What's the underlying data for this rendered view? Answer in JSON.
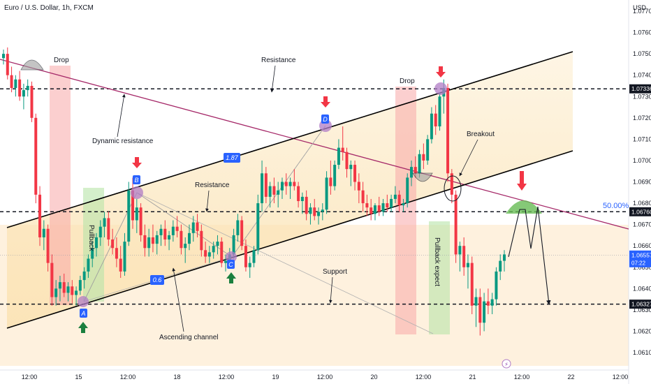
{
  "header": {
    "title": "Euro / U.S. Dollar, 1h, FXCM"
  },
  "chart_data": {
    "type": "candlestick",
    "title": "Euro / U.S. Dollar, 1h, FXCM",
    "currency": "USD",
    "ylim": [
      1.061,
      1.077
    ],
    "y_ticks": [
      "1.07700",
      "1.07600",
      "1.07500",
      "1.07400",
      "1.07300",
      "1.07200",
      "1.07100",
      "1.07000",
      "1.06900",
      "1.06800",
      "1.06700",
      "1.06600",
      "1.06500",
      "1.06400",
      "1.06300",
      "1.06200",
      "1.06100"
    ],
    "x_ticks": [
      "12:00",
      "15",
      "12:00",
      "18",
      "12:00",
      "19",
      "12:00",
      "20",
      "12:00",
      "21",
      "12:00",
      "22",
      "12:00"
    ],
    "price_tags": [
      {
        "label": "1.07336",
        "value": 1.07336,
        "style": "dark"
      },
      {
        "label": "1.06760",
        "value": 1.0676,
        "style": "dark"
      },
      {
        "label": "1.06557",
        "sub": "07:22",
        "value": 1.06557,
        "style": "blue"
      },
      {
        "label": "1.06327",
        "value": 1.06327,
        "style": "dark"
      }
    ],
    "levels": [
      1.07336,
      1.0676,
      1.06327
    ],
    "fib_label": "50.00%",
    "colors": {
      "up": "#089981",
      "down": "#f23645",
      "channel": "#000000",
      "dynamic": "#a52868",
      "zone": "#fbe3b4"
    },
    "annotations": {
      "drop_1": "Drop",
      "drop_2": "Drop",
      "resistance_top": "Resistance",
      "resistance_mid": "Resistance",
      "dynamic_resistance": "Dynamic resistance",
      "support": "Support",
      "ascending_channel": "Ascending channel",
      "breakout": "Breakout",
      "pullback": "Pullback",
      "pullback_expect": "Pullback expect"
    },
    "points": {
      "A": "A",
      "B": "B",
      "C": "C",
      "D": "D"
    },
    "ratios": {
      "r1": "1.87",
      "r2": "0.6"
    },
    "candles": [
      [
        1.0748,
        1.0752,
        1.0745,
        1.075
      ],
      [
        1.075,
        1.0753,
        1.0738,
        1.074
      ],
      [
        1.074,
        1.0744,
        1.0732,
        1.0734
      ],
      [
        1.0734,
        1.074,
        1.073,
        1.0738
      ],
      [
        1.0738,
        1.0742,
        1.0728,
        1.073
      ],
      [
        1.073,
        1.0736,
        1.0724,
        1.0733
      ],
      [
        1.0733,
        1.0738,
        1.073,
        1.0735
      ],
      [
        1.0735,
        1.0737,
        1.0718,
        1.072
      ],
      [
        1.072,
        1.0722,
        1.068,
        1.0684
      ],
      [
        1.0684,
        1.0688,
        1.066,
        1.0664
      ],
      [
        1.0664,
        1.0672,
        1.0658,
        1.0668
      ],
      [
        1.0668,
        1.067,
        1.0648,
        1.0652
      ],
      [
        1.0652,
        1.0656,
        1.0632,
        1.0636
      ],
      [
        1.0636,
        1.0644,
        1.0632,
        1.064
      ],
      [
        1.064,
        1.0646,
        1.0634,
        1.0643
      ],
      [
        1.0643,
        1.0647,
        1.0636,
        1.0638
      ],
      [
        1.0638,
        1.0643,
        1.0634,
        1.0641
      ],
      [
        1.0641,
        1.0644,
        1.0633,
        1.0637
      ],
      [
        1.0637,
        1.0641,
        1.0632,
        1.0639
      ],
      [
        1.0639,
        1.0646,
        1.0637,
        1.0644
      ],
      [
        1.0644,
        1.065,
        1.064,
        1.0648
      ],
      [
        1.0648,
        1.0656,
        1.0645,
        1.0654
      ],
      [
        1.0654,
        1.0662,
        1.065,
        1.0659
      ],
      [
        1.0659,
        1.0666,
        1.0655,
        1.0664
      ],
      [
        1.0664,
        1.0672,
        1.066,
        1.0669
      ],
      [
        1.0669,
        1.0676,
        1.0664,
        1.0673
      ],
      [
        1.0673,
        1.0676,
        1.066,
        1.0663
      ],
      [
        1.0663,
        1.0668,
        1.0656,
        1.0659
      ],
      [
        1.0659,
        1.0664,
        1.065,
        1.0654
      ],
      [
        1.0654,
        1.066,
        1.0645,
        1.0648
      ],
      [
        1.0648,
        1.0666,
        1.0646,
        1.0662
      ],
      [
        1.0662,
        1.069,
        1.066,
        1.0686
      ],
      [
        1.0686,
        1.0692,
        1.0668,
        1.0672
      ],
      [
        1.0672,
        1.0682,
        1.0666,
        1.0678
      ],
      [
        1.0678,
        1.068,
        1.0662,
        1.0665
      ],
      [
        1.0665,
        1.067,
        1.0655,
        1.0659
      ],
      [
        1.0659,
        1.0668,
        1.0655,
        1.0664
      ],
      [
        1.0664,
        1.067,
        1.0657,
        1.0661
      ],
      [
        1.0661,
        1.0667,
        1.0656,
        1.0665
      ],
      [
        1.0665,
        1.067,
        1.066,
        1.0668
      ],
      [
        1.0668,
        1.0672,
        1.066,
        1.0663
      ],
      [
        1.0663,
        1.0667,
        1.0658,
        1.0665
      ],
      [
        1.0665,
        1.0672,
        1.0662,
        1.0669
      ],
      [
        1.0669,
        1.0674,
        1.0664,
        1.0667
      ],
      [
        1.0667,
        1.067,
        1.0656,
        1.0659
      ],
      [
        1.0659,
        1.0664,
        1.0652,
        1.0661
      ],
      [
        1.0661,
        1.067,
        1.0658,
        1.0666
      ],
      [
        1.0666,
        1.0674,
        1.0662,
        1.0671
      ],
      [
        1.0671,
        1.0675,
        1.0664,
        1.0667
      ],
      [
        1.0667,
        1.067,
        1.0655,
        1.0658
      ],
      [
        1.0658,
        1.0662,
        1.0652,
        1.0655
      ],
      [
        1.0655,
        1.066,
        1.0652,
        1.0657
      ],
      [
        1.0657,
        1.0662,
        1.0654,
        1.066
      ],
      [
        1.066,
        1.0665,
        1.0656,
        1.0662
      ],
      [
        1.0662,
        1.0664,
        1.065,
        1.0652
      ],
      [
        1.0652,
        1.0656,
        1.0648,
        1.0653
      ],
      [
        1.0653,
        1.0659,
        1.065,
        1.0656
      ],
      [
        1.0656,
        1.0668,
        1.0654,
        1.0665
      ],
      [
        1.0665,
        1.0675,
        1.0662,
        1.0672
      ],
      [
        1.0672,
        1.0674,
        1.0658,
        1.066
      ],
      [
        1.066,
        1.0663,
        1.0648,
        1.065
      ],
      [
        1.065,
        1.0655,
        1.0645,
        1.0652
      ],
      [
        1.0652,
        1.066,
        1.065,
        1.0658
      ],
      [
        1.0658,
        1.0684,
        1.0656,
        1.068
      ],
      [
        1.068,
        1.07,
        1.0676,
        1.0694
      ],
      [
        1.0694,
        1.0697,
        1.068,
        1.0683
      ],
      [
        1.0683,
        1.069,
        1.0678,
        1.0688
      ],
      [
        1.0688,
        1.0692,
        1.068,
        1.0684
      ],
      [
        1.0684,
        1.069,
        1.0678,
        1.0686
      ],
      [
        1.0686,
        1.0692,
        1.0682,
        1.069
      ],
      [
        1.069,
        1.0694,
        1.0684,
        1.0688
      ],
      [
        1.0688,
        1.0692,
        1.0682,
        1.069
      ],
      [
        1.069,
        1.0696,
        1.0686,
        1.0688
      ],
      [
        1.0688,
        1.069,
        1.0678,
        1.0681
      ],
      [
        1.0681,
        1.0685,
        1.0675,
        1.0683
      ],
      [
        1.0683,
        1.0686,
        1.0672,
        1.0675
      ],
      [
        1.0675,
        1.068,
        1.067,
        1.0678
      ],
      [
        1.0678,
        1.0682,
        1.0672,
        1.0674
      ],
      [
        1.0674,
        1.0678,
        1.067,
        1.0676
      ],
      [
        1.0676,
        1.068,
        1.0672,
        1.0677
      ],
      [
        1.0677,
        1.0695,
        1.0675,
        1.0692
      ],
      [
        1.0692,
        1.07,
        1.0684,
        1.0688
      ],
      [
        1.0688,
        1.07,
        1.0686,
        1.0698
      ],
      [
        1.0698,
        1.071,
        1.0696,
        1.0706
      ],
      [
        1.0706,
        1.0716,
        1.07,
        1.0704
      ],
      [
        1.0704,
        1.0706,
        1.0692,
        1.0696
      ],
      [
        1.0696,
        1.07,
        1.0688,
        1.0698
      ],
      [
        1.0698,
        1.07,
        1.0686,
        1.069
      ],
      [
        1.069,
        1.0694,
        1.068,
        1.0686
      ],
      [
        1.0686,
        1.069,
        1.0676,
        1.068
      ],
      [
        1.068,
        1.0684,
        1.0674,
        1.0678
      ],
      [
        1.0678,
        1.0682,
        1.0672,
        1.0675
      ],
      [
        1.0675,
        1.068,
        1.0672,
        1.0679
      ],
      [
        1.0679,
        1.0683,
        1.0674,
        1.0676
      ],
      [
        1.0676,
        1.0682,
        1.0674,
        1.068
      ],
      [
        1.068,
        1.0684,
        1.0676,
        1.0678
      ],
      [
        1.0678,
        1.0684,
        1.0676,
        1.0682
      ],
      [
        1.0682,
        1.0688,
        1.068,
        1.0684
      ],
      [
        1.0684,
        1.0686,
        1.0676,
        1.0679
      ],
      [
        1.0679,
        1.0682,
        1.0676,
        1.068
      ],
      [
        1.068,
        1.0694,
        1.0678,
        1.0692
      ],
      [
        1.0692,
        1.07,
        1.0688,
        1.0697
      ],
      [
        1.0697,
        1.0702,
        1.0692,
        1.0694
      ],
      [
        1.0694,
        1.0705,
        1.0692,
        1.0703
      ],
      [
        1.0703,
        1.0708,
        1.0696,
        1.07
      ],
      [
        1.07,
        1.0712,
        1.0698,
        1.071
      ],
      [
        1.071,
        1.0725,
        1.0708,
        1.0722
      ],
      [
        1.0722,
        1.0726,
        1.0712,
        1.0716
      ],
      [
        1.0716,
        1.0732,
        1.0714,
        1.073
      ],
      [
        1.073,
        1.0738,
        1.0722,
        1.0734
      ],
      [
        1.0734,
        1.0736,
        1.069,
        1.0694
      ],
      [
        1.0694,
        1.0696,
        1.068,
        1.0684
      ],
      [
        1.0684,
        1.0686,
        1.0652,
        1.0656
      ],
      [
        1.0656,
        1.0662,
        1.0648,
        1.066
      ],
      [
        1.066,
        1.0664,
        1.0646,
        1.065
      ],
      [
        1.065,
        1.0656,
        1.064,
        1.0652
      ],
      [
        1.0652,
        1.0655,
        1.0628,
        1.0632
      ],
      [
        1.0632,
        1.064,
        1.0622,
        1.0636
      ],
      [
        1.0636,
        1.064,
        1.0618,
        1.0624
      ],
      [
        1.0624,
        1.0638,
        1.062,
        1.0634
      ],
      [
        1.0634,
        1.064,
        1.0628,
        1.0632
      ],
      [
        1.0632,
        1.0638,
        1.0628,
        1.0635
      ],
      [
        1.0635,
        1.065,
        1.0632,
        1.0648
      ],
      [
        1.0648,
        1.0656,
        1.0644,
        1.0653
      ],
      [
        1.0653,
        1.0658,
        1.0648,
        1.0656
      ]
    ]
  }
}
